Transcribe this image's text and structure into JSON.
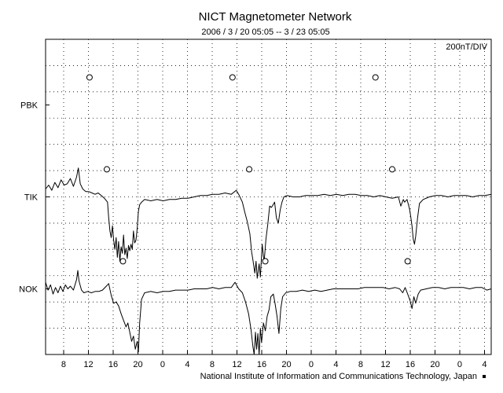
{
  "chart_data": {
    "type": "line",
    "title": "NICT Magnetometer Network",
    "subtitle": "2006 / 3 / 20   05:05 --  3 / 23   05:05",
    "scale_label": "200nT/DIV",
    "credit": "National Institute of Information and Communications Technology, Japan",
    "xlabel": "",
    "ylabel": "",
    "x_unit": "hours since 2006-03-20 05:05",
    "xlim": [
      0,
      72
    ],
    "x_ticks": [
      {
        "x": 2.92,
        "label": "8"
      },
      {
        "x": 6.92,
        "label": "12"
      },
      {
        "x": 10.92,
        "label": "16"
      },
      {
        "x": 14.92,
        "label": "20"
      },
      {
        "x": 18.92,
        "label": "0"
      },
      {
        "x": 22.92,
        "label": "4"
      },
      {
        "x": 26.92,
        "label": "8"
      },
      {
        "x": 30.92,
        "label": "12"
      },
      {
        "x": 34.92,
        "label": "16"
      },
      {
        "x": 38.92,
        "label": "20"
      },
      {
        "x": 42.92,
        "label": "0"
      },
      {
        "x": 46.92,
        "label": "4"
      },
      {
        "x": 50.92,
        "label": "8"
      },
      {
        "x": 54.92,
        "label": "12"
      },
      {
        "x": 58.92,
        "label": "16"
      },
      {
        "x": 62.92,
        "label": "20"
      },
      {
        "x": 66.92,
        "label": "0"
      },
      {
        "x": 70.92,
        "label": "4"
      }
    ],
    "y_unit": "divisions (200 nT/DIV)",
    "ylim": [
      -12,
      12
    ],
    "grid": true,
    "series": [
      {
        "name": "PBK",
        "baseline": 7,
        "values": [],
        "markers": [
          7.1,
          30.2,
          53.3
        ]
      },
      {
        "name": "TIK",
        "baseline": 0,
        "markers": [
          9.9,
          32.9,
          56.0
        ],
        "values": [
          [
            0,
            0.6
          ],
          [
            0.5,
            0.9
          ],
          [
            1,
            0.5
          ],
          [
            1.5,
            1.1
          ],
          [
            2,
            0.7
          ],
          [
            2.5,
            1.3
          ],
          [
            3,
            0.9
          ],
          [
            3.5,
            1.0
          ],
          [
            4,
            1.4
          ],
          [
            4.5,
            0.8
          ],
          [
            5,
            1.5
          ],
          [
            5.3,
            2.2
          ],
          [
            5.6,
            1.0
          ],
          [
            6,
            0.6
          ],
          [
            6.5,
            0.4
          ],
          [
            7,
            0.4
          ],
          [
            7.5,
            0.3
          ],
          [
            8,
            0.2
          ],
          [
            8.5,
            0.3
          ],
          [
            9,
            0.1
          ],
          [
            9.5,
            -0.1
          ],
          [
            10,
            -0.4
          ],
          [
            10.2,
            -1.6
          ],
          [
            10.4,
            -2.6
          ],
          [
            10.6,
            -3.1
          ],
          [
            10.8,
            -2.2
          ],
          [
            11,
            -3.3
          ],
          [
            11.2,
            -4.0
          ],
          [
            11.4,
            -3.1
          ],
          [
            11.6,
            -4.6
          ],
          [
            11.8,
            -3.4
          ],
          [
            12,
            -4.9
          ],
          [
            12.2,
            -3.8
          ],
          [
            12.4,
            -4.3
          ],
          [
            12.6,
            -2.9
          ],
          [
            12.8,
            -4.4
          ],
          [
            13,
            -3.9
          ],
          [
            13.2,
            -4.7
          ],
          [
            13.4,
            -3.7
          ],
          [
            13.6,
            -4.1
          ],
          [
            13.8,
            -3.6
          ],
          [
            14,
            -4.0
          ],
          [
            14.2,
            -2.6
          ],
          [
            14.4,
            -3.5
          ],
          [
            14.6,
            -3.3
          ],
          [
            14.8,
            -2.4
          ],
          [
            15,
            -1.1
          ],
          [
            15.2,
            -0.6
          ],
          [
            15.5,
            -0.4
          ],
          [
            16,
            -0.2
          ],
          [
            17,
            -0.3
          ],
          [
            18,
            -0.2
          ],
          [
            19,
            -0.3
          ],
          [
            20,
            -0.2
          ],
          [
            21,
            -0.2
          ],
          [
            22,
            -0.1
          ],
          [
            23,
            -0.1
          ],
          [
            24,
            0.0
          ],
          [
            25,
            0.1
          ],
          [
            26,
            0.1
          ],
          [
            27,
            0.2
          ],
          [
            28,
            0.2
          ],
          [
            29,
            0.3
          ],
          [
            30,
            0.2
          ],
          [
            30.8,
            0.5
          ],
          [
            31.2,
            0.2
          ],
          [
            31.8,
            -0.4
          ],
          [
            32.2,
            -1.2
          ],
          [
            32.6,
            -1.9
          ],
          [
            33,
            -2.8
          ],
          [
            33.3,
            -4.2
          ],
          [
            33.5,
            -4.8
          ],
          [
            33.8,
            -5.8
          ],
          [
            34,
            -4.9
          ],
          [
            34.2,
            -6.2
          ],
          [
            34.5,
            -5.1
          ],
          [
            34.7,
            -6.1
          ],
          [
            35,
            -3.6
          ],
          [
            35.3,
            -5.0
          ],
          [
            35.6,
            -3.2
          ],
          [
            35.9,
            -2.1
          ],
          [
            36.2,
            -0.7
          ],
          [
            36.5,
            -0.8
          ],
          [
            37,
            -0.4
          ],
          [
            37.3,
            -1.6
          ],
          [
            37.6,
            -2.0
          ],
          [
            37.9,
            -1.0
          ],
          [
            38.2,
            -0.4
          ],
          [
            38.5,
            0.0
          ],
          [
            39,
            0.1
          ],
          [
            40,
            0.0
          ],
          [
            41,
            0.0
          ],
          [
            42,
            0.1
          ],
          [
            43,
            0.1
          ],
          [
            44,
            0.1
          ],
          [
            45,
            0.2
          ],
          [
            46,
            0.1
          ],
          [
            47,
            0.2
          ],
          [
            48,
            0.1
          ],
          [
            49,
            0.2
          ],
          [
            50,
            0.2
          ],
          [
            51,
            0.1
          ],
          [
            52,
            0.1
          ],
          [
            53,
            0.0
          ],
          [
            54,
            0.1
          ],
          [
            55,
            0.0
          ],
          [
            56,
            -0.1
          ],
          [
            57,
            0.0
          ],
          [
            57.4,
            -0.7
          ],
          [
            57.8,
            -0.2
          ],
          [
            58,
            -0.4
          ],
          [
            58.4,
            -0.2
          ],
          [
            58.8,
            -0.9
          ],
          [
            59,
            -1.5
          ],
          [
            59.2,
            -2.2
          ],
          [
            59.4,
            -3.2
          ],
          [
            59.6,
            -3.6
          ],
          [
            59.8,
            -3.0
          ],
          [
            60.1,
            -1.6
          ],
          [
            60.4,
            -0.5
          ],
          [
            61,
            -0.2
          ],
          [
            62,
            0.0
          ],
          [
            63,
            0.1
          ],
          [
            64,
            0.1
          ],
          [
            65,
            0.0
          ],
          [
            66,
            0.1
          ],
          [
            67,
            0.1
          ],
          [
            68,
            0.1
          ],
          [
            69,
            0.0
          ],
          [
            70,
            0.1
          ],
          [
            71,
            0.1
          ],
          [
            72,
            0.2
          ]
        ]
      },
      {
        "name": "NOK",
        "baseline": -7,
        "markers": [
          12.5,
          35.5,
          58.5
        ],
        "values": [
          [
            0,
            -6.5
          ],
          [
            0.4,
            -7.1
          ],
          [
            0.8,
            -6.7
          ],
          [
            1.2,
            -7.4
          ],
          [
            1.6,
            -6.9
          ],
          [
            2,
            -7.3
          ],
          [
            2.4,
            -6.8
          ],
          [
            2.8,
            -7.2
          ],
          [
            3.2,
            -6.7
          ],
          [
            3.6,
            -7.0
          ],
          [
            4,
            -6.8
          ],
          [
            4.5,
            -7.1
          ],
          [
            5,
            -6.3
          ],
          [
            5.2,
            -5.6
          ],
          [
            5.4,
            -6.4
          ],
          [
            5.8,
            -7.1
          ],
          [
            6.2,
            -7.3
          ],
          [
            6.8,
            -7.2
          ],
          [
            7.4,
            -7.3
          ],
          [
            8,
            -7.2
          ],
          [
            8.6,
            -7.2
          ],
          [
            9.2,
            -7.1
          ],
          [
            9.8,
            -6.8
          ],
          [
            10.2,
            -6.6
          ],
          [
            10.6,
            -7.5
          ],
          [
            11,
            -8.1
          ],
          [
            11.4,
            -8.0
          ],
          [
            11.8,
            -8.3
          ],
          [
            12.2,
            -8.9
          ],
          [
            12.6,
            -9.4
          ],
          [
            13,
            -9.9
          ],
          [
            13.3,
            -9.6
          ],
          [
            13.6,
            -10.3
          ],
          [
            13.9,
            -11.0
          ],
          [
            14.2,
            -10.6
          ],
          [
            14.5,
            -11.6
          ],
          [
            14.8,
            -11.0
          ],
          [
            15,
            -11.8
          ],
          [
            15.2,
            -9.6
          ],
          [
            15.5,
            -7.8
          ],
          [
            16,
            -7.3
          ],
          [
            17,
            -7.2
          ],
          [
            18,
            -7.3
          ],
          [
            19,
            -7.2
          ],
          [
            20,
            -7.2
          ],
          [
            21,
            -7.1
          ],
          [
            22,
            -7.1
          ],
          [
            23,
            -7.1
          ],
          [
            24,
            -7.0
          ],
          [
            25,
            -7.0
          ],
          [
            26,
            -7.0
          ],
          [
            27,
            -6.9
          ],
          [
            28,
            -7.0
          ],
          [
            29,
            -6.9
          ],
          [
            30,
            -6.9
          ],
          [
            30.6,
            -6.5
          ],
          [
            31.2,
            -7.0
          ],
          [
            31.8,
            -7.3
          ],
          [
            32.3,
            -8.0
          ],
          [
            32.8,
            -8.9
          ],
          [
            33.2,
            -10.1
          ],
          [
            33.5,
            -11.4
          ],
          [
            33.7,
            -12.0
          ],
          [
            33.9,
            -10.3
          ],
          [
            34.1,
            -11.6
          ],
          [
            34.3,
            -10.4
          ],
          [
            34.5,
            -12.0
          ],
          [
            34.7,
            -10.0
          ],
          [
            34.9,
            -11.1
          ],
          [
            35.2,
            -9.6
          ],
          [
            35.5,
            -10.2
          ],
          [
            35.8,
            -9.1
          ],
          [
            36.1,
            -8.6
          ],
          [
            36.4,
            -7.6
          ],
          [
            36.8,
            -7.4
          ],
          [
            37.1,
            -8.2
          ],
          [
            37.4,
            -9.1
          ],
          [
            37.7,
            -10.4
          ],
          [
            38,
            -8.5
          ],
          [
            38.3,
            -7.6
          ],
          [
            38.8,
            -7.3
          ],
          [
            39.5,
            -7.2
          ],
          [
            40.5,
            -7.2
          ],
          [
            41.5,
            -7.1
          ],
          [
            42.5,
            -7.2
          ],
          [
            43.5,
            -7.1
          ],
          [
            44.5,
            -7.2
          ],
          [
            45.5,
            -7.1
          ],
          [
            46.5,
            -7.0
          ],
          [
            47.5,
            -7.0
          ],
          [
            48.5,
            -7.0
          ],
          [
            49.5,
            -7.0
          ],
          [
            50.5,
            -7.0
          ],
          [
            51.5,
            -6.9
          ],
          [
            52.5,
            -6.9
          ],
          [
            53.5,
            -6.9
          ],
          [
            54.5,
            -6.9
          ],
          [
            55.5,
            -7.0
          ],
          [
            56.5,
            -6.9
          ],
          [
            57.2,
            -7.0
          ],
          [
            57.7,
            -7.3
          ],
          [
            58.1,
            -6.9
          ],
          [
            58.5,
            -7.4
          ],
          [
            58.9,
            -7.9
          ],
          [
            59.2,
            -8.5
          ],
          [
            59.5,
            -7.6
          ],
          [
            59.8,
            -8.1
          ],
          [
            60.2,
            -7.4
          ],
          [
            60.6,
            -7.1
          ],
          [
            61.5,
            -7.0
          ],
          [
            62.5,
            -6.9
          ],
          [
            63.5,
            -6.9
          ],
          [
            64.5,
            -7.0
          ],
          [
            65.5,
            -6.9
          ],
          [
            66.5,
            -6.9
          ],
          [
            67.5,
            -6.9
          ],
          [
            68.5,
            -7.0
          ],
          [
            69.5,
            -6.9
          ],
          [
            70.5,
            -6.9
          ],
          [
            71.3,
            -7.1
          ],
          [
            72,
            -7.0
          ]
        ]
      }
    ]
  }
}
